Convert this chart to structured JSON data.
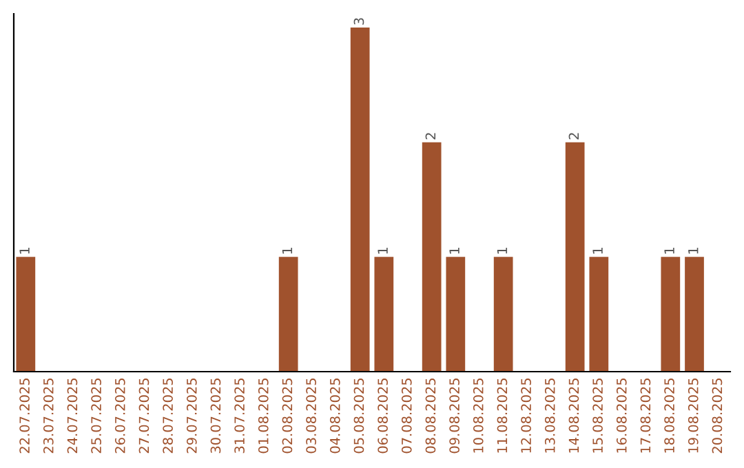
{
  "chart_data": {
    "type": "bar",
    "categories": [
      "22.07.2025",
      "23.07.2025",
      "24.07.2025",
      "25.07.2025",
      "26.07.2025",
      "27.07.2025",
      "28.07.2025",
      "29.07.2025",
      "30.07.2025",
      "31.07.2025",
      "01.08.2025",
      "02.08.2025",
      "03.08.2025",
      "04.08.2025",
      "05.08.2025",
      "06.08.2025",
      "07.08.2025",
      "08.08.2025",
      "09.08.2025",
      "10.08.2025",
      "11.08.2025",
      "12.08.2025",
      "13.08.2025",
      "14.08.2025",
      "15.08.2025",
      "16.08.2025",
      "17.08.2025",
      "18.08.2025",
      "19.08.2025",
      "20.08.2025"
    ],
    "values": [
      1,
      0,
      0,
      0,
      0,
      0,
      0,
      0,
      0,
      0,
      0,
      1,
      0,
      0,
      3,
      1,
      0,
      2,
      1,
      0,
      1,
      0,
      0,
      2,
      1,
      0,
      0,
      1,
      1,
      0
    ],
    "value_labels": [
      "1",
      null,
      null,
      null,
      null,
      null,
      null,
      null,
      null,
      null,
      null,
      "1",
      null,
      null,
      "3",
      "1",
      null,
      "2",
      "1",
      null,
      "1",
      null,
      null,
      "2",
      "1",
      null,
      null,
      "1",
      "1",
      null
    ],
    "color": "#a0522d",
    "tick_labels": "x",
    "grid": false,
    "legend": false
  }
}
